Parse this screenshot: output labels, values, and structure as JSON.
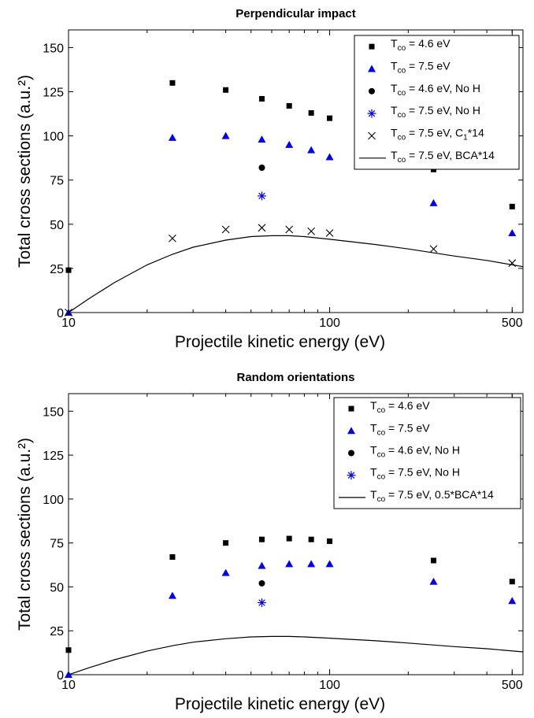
{
  "chart_data": [
    {
      "type": "scatter",
      "title": "Perpendicular impact",
      "xlabel": "Projectile kinetic energy (eV)",
      "ylabel": "Total cross sections (a.u.²)",
      "xscale": "log",
      "xlim": [
        10,
        550
      ],
      "ylim": [
        0,
        160
      ],
      "xticks": [
        10,
        100,
        500
      ],
      "yticks": [
        0,
        25,
        50,
        75,
        100,
        125,
        150
      ],
      "grid": false,
      "legend_position": "top-right",
      "series": [
        {
          "name": "T_co = 4.6 eV",
          "legend": {
            "main": "T",
            "sub": "co",
            "rest": " = 4.6 eV"
          },
          "marker": "square",
          "color": "#000000",
          "x": [
            10,
            25,
            40,
            55,
            70,
            85,
            100,
            250,
            500
          ],
          "y": [
            24,
            130,
            126,
            121,
            117,
            113,
            110,
            81,
            60
          ]
        },
        {
          "name": "T_co = 7.5 eV",
          "legend": {
            "main": "T",
            "sub": "co",
            "rest": " = 7.5 eV"
          },
          "marker": "triangle",
          "color": "#0000ee",
          "x": [
            10,
            25,
            40,
            55,
            70,
            85,
            100,
            250,
            500
          ],
          "y": [
            0,
            99,
            100,
            98,
            95,
            92,
            88,
            62,
            45
          ]
        },
        {
          "name": "T_co = 4.6 eV, No H",
          "legend": {
            "main": "T",
            "sub": "co",
            "rest": " = 4.6 eV, No H"
          },
          "marker": "circle",
          "color": "#000000",
          "x": [
            55
          ],
          "y": [
            82
          ]
        },
        {
          "name": "T_co = 7.5 eV, No H",
          "legend": {
            "main": "T",
            "sub": "co",
            "rest": " = 7.5 eV, No H"
          },
          "marker": "asterisk",
          "color": "#0000ee",
          "x": [
            55
          ],
          "y": [
            66
          ]
        },
        {
          "name": "T_co = 7.5 eV, C_1*14",
          "legend": {
            "main": "T",
            "sub": "co",
            "rest": " = 7.5 eV, C",
            "sub2": "1",
            "rest2": "*14"
          },
          "marker": "x",
          "color": "#000000",
          "x": [
            10,
            25,
            40,
            55,
            70,
            85,
            100,
            250,
            500
          ],
          "y": [
            0,
            42,
            47,
            48,
            47,
            46,
            45,
            36,
            28
          ]
        },
        {
          "name": "T_co = 7.5 eV, BCA*14",
          "legend": {
            "main": "T",
            "sub": "co",
            "rest": " = 7.5 eV, BCA*14"
          },
          "marker": "line",
          "color": "#000000",
          "x": [
            10,
            12,
            15,
            20,
            25,
            30,
            40,
            50,
            60,
            70,
            80,
            100,
            150,
            200,
            300,
            400,
            550
          ],
          "y": [
            0,
            8,
            17,
            27,
            33,
            37,
            41,
            43,
            43.5,
            43.5,
            43,
            41.5,
            38.5,
            36,
            32,
            29.5,
            26
          ]
        }
      ]
    },
    {
      "type": "scatter",
      "title": "Random orientations",
      "xlabel": "Projectile kinetic energy (eV)",
      "ylabel": "Total cross sections (a.u.²)",
      "xscale": "log",
      "xlim": [
        10,
        550
      ],
      "ylim": [
        0,
        160
      ],
      "xticks": [
        10,
        100,
        500
      ],
      "yticks": [
        0,
        25,
        50,
        75,
        100,
        125,
        150
      ],
      "grid": false,
      "legend_position": "top-right",
      "series": [
        {
          "name": "T_co = 4.6 eV",
          "legend": {
            "main": "T",
            "sub": "co",
            "rest": " = 4.6 eV"
          },
          "marker": "square",
          "color": "#000000",
          "x": [
            10,
            25,
            40,
            55,
            70,
            85,
            100,
            250,
            500
          ],
          "y": [
            14,
            67,
            75,
            77,
            77.5,
            77,
            76,
            65,
            53
          ]
        },
        {
          "name": "T_co = 7.5 eV",
          "legend": {
            "main": "T",
            "sub": "co",
            "rest": " = 7.5 eV"
          },
          "marker": "triangle",
          "color": "#0000ee",
          "x": [
            10,
            25,
            40,
            55,
            70,
            85,
            100,
            250,
            500
          ],
          "y": [
            0,
            45,
            58,
            62,
            63,
            63,
            63,
            53,
            42
          ]
        },
        {
          "name": "T_co = 4.6 eV, No H",
          "legend": {
            "main": "T",
            "sub": "co",
            "rest": " = 4.6 eV, No H"
          },
          "marker": "circle",
          "color": "#000000",
          "x": [
            55
          ],
          "y": [
            52
          ]
        },
        {
          "name": "T_co = 7.5 eV, No H",
          "legend": {
            "main": "T",
            "sub": "co",
            "rest": " = 7.5 eV, No H"
          },
          "marker": "asterisk",
          "color": "#0000ee",
          "x": [
            55
          ],
          "y": [
            41
          ]
        },
        {
          "name": "T_co = 7.5 eV, 0.5*BCA*14",
          "legend": {
            "main": "T",
            "sub": "co",
            "rest": " = 7.5 eV, 0.5*BCA*14"
          },
          "marker": "line",
          "color": "#000000",
          "x": [
            10,
            12,
            15,
            20,
            25,
            30,
            40,
            50,
            60,
            70,
            80,
            100,
            150,
            200,
            300,
            400,
            550
          ],
          "y": [
            0,
            4,
            8.5,
            13.5,
            16.5,
            18.5,
            20.5,
            21.5,
            21.8,
            21.8,
            21.5,
            20.8,
            19.3,
            18,
            16,
            14.8,
            13
          ]
        }
      ]
    }
  ]
}
